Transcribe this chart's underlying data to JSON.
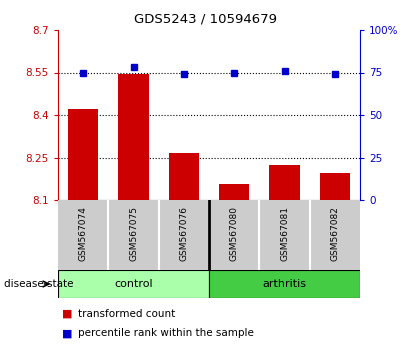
{
  "title": "GDS5243 / 10594679",
  "samples": [
    "GSM567074",
    "GSM567075",
    "GSM567076",
    "GSM567080",
    "GSM567081",
    "GSM567082"
  ],
  "groups": [
    "control",
    "control",
    "control",
    "arthritis",
    "arthritis",
    "arthritis"
  ],
  "transformed_count": [
    8.42,
    8.545,
    8.265,
    8.155,
    8.225,
    8.195
  ],
  "percentile_rank": [
    75,
    78,
    74,
    75,
    76,
    74
  ],
  "ylim_left": [
    8.1,
    8.7
  ],
  "ylim_right": [
    0,
    100
  ],
  "yticks_left": [
    8.1,
    8.25,
    8.4,
    8.55,
    8.7
  ],
  "yticks_right": [
    0,
    25,
    50,
    75,
    100
  ],
  "bar_color": "#CC0000",
  "dot_color": "#0000CC",
  "control_color": "#AAFFAA",
  "arthritis_color": "#44CC44",
  "label_bg_color": "#CCCCCC",
  "bar_width": 0.6,
  "base_value": 8.1,
  "group_label": "disease state",
  "legend_bar": "transformed count",
  "legend_dot": "percentile rank within the sample",
  "n_control": 3,
  "n_arthritis": 3
}
